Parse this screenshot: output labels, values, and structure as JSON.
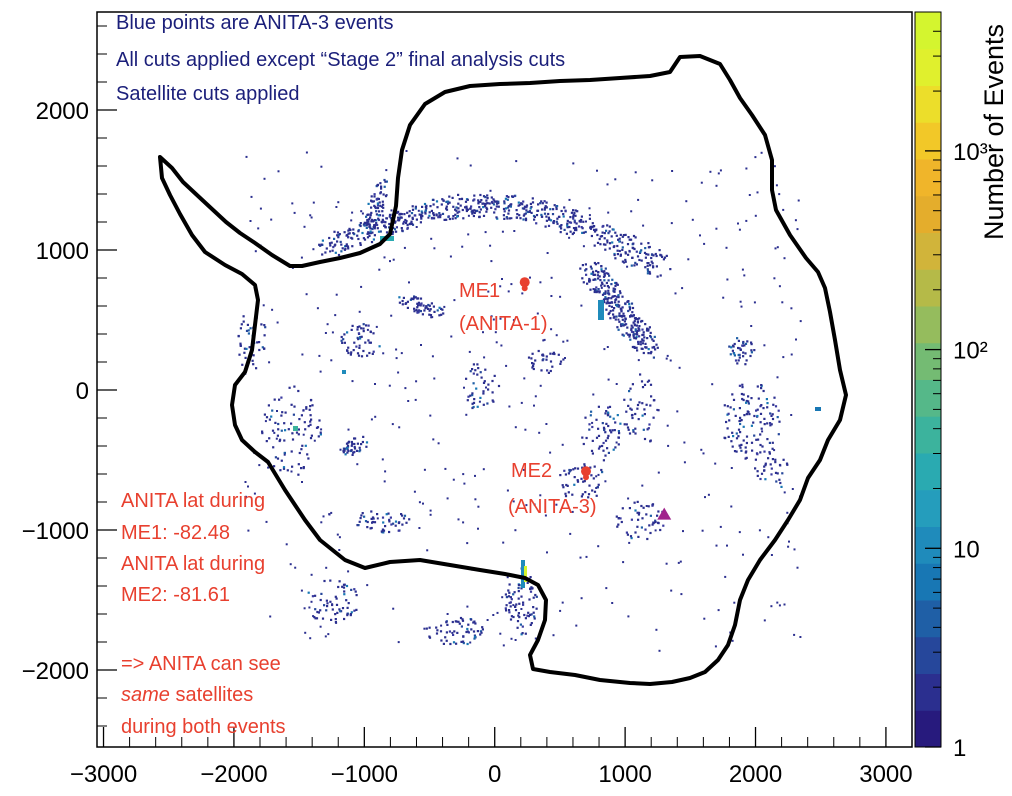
{
  "chart_data": {
    "type": "heatmap",
    "x_ticks": [
      -3000,
      -2000,
      -1000,
      0,
      1000,
      2000,
      3000
    ],
    "y_ticks": [
      2000,
      1000,
      0,
      -1000,
      -2000
    ],
    "x_tick_labels": [
      "−3000",
      "−2000",
      "−1000",
      "0",
      "1000",
      "2000",
      "3000"
    ],
    "y_tick_labels": [
      "2000",
      "1000",
      "0",
      "−1000",
      "−2000"
    ],
    "xlim": [
      -3050,
      3200
    ],
    "ylim": [
      -2550,
      2700
    ],
    "colorbar": {
      "label": "Number of Events",
      "scale": "log",
      "range": [
        1,
        5000
      ],
      "tick_values": [
        1,
        10,
        100,
        1000
      ],
      "tick_labels": [
        "1",
        "10",
        "10²",
        "10³"
      ],
      "palette": [
        "#271a7d",
        "#2b2f8f",
        "#26479b",
        "#1f5fa6",
        "#1877b4",
        "#1f8bbb",
        "#259dbc",
        "#2aaab1",
        "#3cb39d",
        "#55b889",
        "#74bb73",
        "#95bc5d",
        "#b5ba48",
        "#d1b43a",
        "#e4ad2c",
        "#f0b52a",
        "#f2c828",
        "#ecde2a",
        "#e0f02d",
        "#d4f52f"
      ]
    },
    "annotations": {
      "top_left": [
        "Blue points are ANITA-3 events",
        "All cuts applied except “Stage 2” final analysis cuts",
        "Satellite cuts applied"
      ],
      "me1_label": [
        "ME1",
        "(ANITA-1)"
      ],
      "me2_label": [
        "ME2",
        "(ANITA-3)"
      ],
      "lat_note": [
        "ANITA lat during",
        "ME1: -82.48",
        "ANITA lat during",
        "ME2: -81.61"
      ],
      "conclusion_prefix": "=> ANITA can see",
      "conclusion_emph": "same",
      "conclusion_rest": " satellites",
      "conclusion_end": "during both events"
    },
    "markers": [
      {
        "name": "ME1",
        "x": 230,
        "y": 770,
        "color": "#e8402f",
        "shape": "circle"
      },
      {
        "name": "ME2",
        "x": 700,
        "y": -580,
        "color": "#e8402f",
        "shape": "circle"
      },
      {
        "name": "station",
        "x": 1300,
        "y": -890,
        "color": "#a0248c",
        "shape": "triangle"
      }
    ],
    "coastline_color": "#000000",
    "event_color": "#2b2f8f"
  }
}
